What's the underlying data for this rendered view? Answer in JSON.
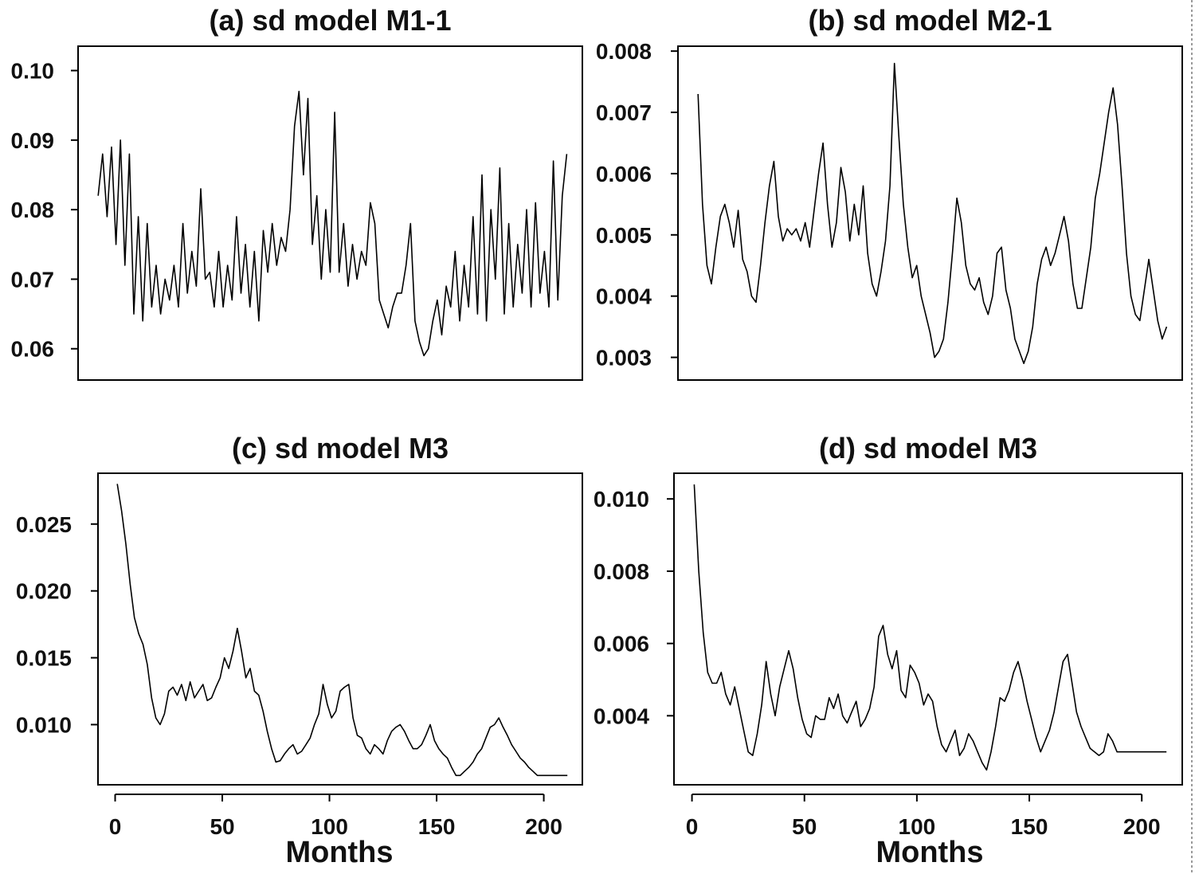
{
  "chart_data": [
    {
      "type": "line",
      "title": "(a) sd model M1-1",
      "xlabel": "",
      "ylabel": "",
      "xlim": [
        -8,
        218
      ],
      "ylim": [
        0.0555,
        0.1035
      ],
      "yticks": [
        "0.06",
        "0.07",
        "0.08",
        "0.09",
        "0.10"
      ],
      "xticks": [],
      "series": [
        {
          "name": "sd",
          "x": [
            1,
            3,
            5,
            7,
            9,
            11,
            13,
            15,
            17,
            19,
            21,
            23,
            25,
            27,
            29,
            31,
            33,
            35,
            37,
            39,
            41,
            43,
            45,
            47,
            49,
            51,
            53,
            55,
            57,
            59,
            61,
            63,
            65,
            67,
            69,
            71,
            73,
            75,
            77,
            79,
            81,
            83,
            85,
            87,
            89,
            91,
            93,
            95,
            97,
            99,
            101,
            103,
            105,
            107,
            109,
            111,
            113,
            115,
            117,
            119,
            121,
            123,
            125,
            127,
            129,
            131,
            133,
            135,
            137,
            139,
            141,
            143,
            145,
            147,
            149,
            151,
            153,
            155,
            157,
            159,
            161,
            163,
            165,
            167,
            169,
            171,
            173,
            175,
            177,
            179,
            181,
            183,
            185,
            187,
            189,
            191,
            193,
            195,
            197,
            199,
            201,
            203,
            205,
            207,
            209,
            211
          ],
          "values": [
            0.082,
            0.088,
            0.079,
            0.089,
            0.075,
            0.09,
            0.072,
            0.088,
            0.065,
            0.079,
            0.064,
            0.078,
            0.066,
            0.072,
            0.065,
            0.07,
            0.067,
            0.072,
            0.066,
            0.078,
            0.068,
            0.074,
            0.069,
            0.083,
            0.07,
            0.071,
            0.066,
            0.074,
            0.066,
            0.072,
            0.067,
            0.079,
            0.068,
            0.075,
            0.066,
            0.074,
            0.064,
            0.077,
            0.071,
            0.078,
            0.072,
            0.076,
            0.074,
            0.08,
            0.092,
            0.097,
            0.085,
            0.096,
            0.075,
            0.082,
            0.07,
            0.08,
            0.071,
            0.094,
            0.071,
            0.078,
            0.069,
            0.075,
            0.07,
            0.074,
            0.072,
            0.081,
            0.078,
            0.067,
            0.065,
            0.063,
            0.066,
            0.068,
            0.068,
            0.072,
            0.078,
            0.064,
            0.061,
            0.059,
            0.06,
            0.064,
            0.067,
            0.062,
            0.069,
            0.066,
            0.074,
            0.064,
            0.072,
            0.066,
            0.079,
            0.065,
            0.085,
            0.064,
            0.08,
            0.07,
            0.086,
            0.065,
            0.078,
            0.066,
            0.075,
            0.068,
            0.08,
            0.066,
            0.081,
            0.068,
            0.074,
            0.066,
            0.087,
            0.067,
            0.082,
            0.088
          ]
        }
      ]
    },
    {
      "type": "line",
      "title": "(b) sd model M2-1",
      "xlabel": "",
      "ylabel": "",
      "xlim": [
        -8,
        218
      ],
      "ylim": [
        0.00263,
        0.00808
      ],
      "yticks": [
        "0.003",
        "0.004",
        "0.005",
        "0.006",
        "0.007",
        "0.008"
      ],
      "xticks": [],
      "series": [
        {
          "name": "sd",
          "x": [
            1,
            3,
            5,
            7,
            9,
            11,
            13,
            15,
            17,
            19,
            21,
            23,
            25,
            27,
            29,
            31,
            33,
            35,
            37,
            39,
            41,
            43,
            45,
            47,
            49,
            51,
            53,
            55,
            57,
            59,
            61,
            63,
            65,
            67,
            69,
            71,
            73,
            75,
            77,
            79,
            81,
            83,
            85,
            87,
            89,
            91,
            93,
            95,
            97,
            99,
            101,
            103,
            105,
            107,
            109,
            111,
            113,
            115,
            117,
            119,
            121,
            123,
            125,
            127,
            129,
            131,
            133,
            135,
            137,
            139,
            141,
            143,
            145,
            147,
            149,
            151,
            153,
            155,
            157,
            159,
            161,
            163,
            165,
            167,
            169,
            171,
            173,
            175,
            177,
            179,
            181,
            183,
            185,
            187,
            189,
            191,
            193,
            195,
            197,
            199,
            201,
            203,
            205,
            207,
            209,
            211
          ],
          "values": [
            0.0073,
            0.0055,
            0.0045,
            0.0042,
            0.0048,
            0.0053,
            0.0055,
            0.0052,
            0.0048,
            0.0054,
            0.0046,
            0.0044,
            0.004,
            0.0039,
            0.0045,
            0.0052,
            0.0058,
            0.0062,
            0.0053,
            0.0049,
            0.0051,
            0.005,
            0.0051,
            0.0049,
            0.0052,
            0.0048,
            0.0054,
            0.006,
            0.0065,
            0.0055,
            0.0048,
            0.0052,
            0.0061,
            0.0057,
            0.0049,
            0.0055,
            0.005,
            0.0058,
            0.0047,
            0.0042,
            0.004,
            0.0044,
            0.0049,
            0.0058,
            0.0078,
            0.0066,
            0.0055,
            0.0048,
            0.0043,
            0.0045,
            0.004,
            0.0037,
            0.0034,
            0.003,
            0.0031,
            0.0033,
            0.0039,
            0.0047,
            0.0056,
            0.0052,
            0.0045,
            0.0042,
            0.0041,
            0.0043,
            0.0039,
            0.0037,
            0.004,
            0.0047,
            0.0048,
            0.0041,
            0.0038,
            0.0033,
            0.0031,
            0.0029,
            0.0031,
            0.0035,
            0.0042,
            0.0046,
            0.0048,
            0.0045,
            0.0047,
            0.005,
            0.0053,
            0.0049,
            0.0042,
            0.0038,
            0.0038,
            0.0043,
            0.0048,
            0.0056,
            0.006,
            0.0065,
            0.007,
            0.0074,
            0.0068,
            0.0058,
            0.0047,
            0.004,
            0.0037,
            0.0036,
            0.0041,
            0.0046,
            0.0041,
            0.0036,
            0.0033,
            0.0035
          ]
        }
      ]
    },
    {
      "type": "line",
      "title": "(c) sd model M3",
      "xlabel": "Months",
      "ylabel": "",
      "xlim": [
        -8,
        218
      ],
      "ylim": [
        0.0055,
        0.0288
      ],
      "yticks": [
        "0.010",
        "0.015",
        "0.020",
        "0.025"
      ],
      "xticks": [
        "0",
        "50",
        "100",
        "150",
        "200"
      ],
      "series": [
        {
          "name": "sd",
          "x": [
            1,
            3,
            5,
            7,
            9,
            11,
            13,
            15,
            17,
            19,
            21,
            23,
            25,
            27,
            29,
            31,
            33,
            35,
            37,
            39,
            41,
            43,
            45,
            47,
            49,
            51,
            53,
            55,
            57,
            59,
            61,
            63,
            65,
            67,
            69,
            71,
            73,
            75,
            77,
            79,
            81,
            83,
            85,
            87,
            89,
            91,
            93,
            95,
            97,
            99,
            101,
            103,
            105,
            107,
            109,
            111,
            113,
            115,
            117,
            119,
            121,
            123,
            125,
            127,
            129,
            131,
            133,
            135,
            137,
            139,
            141,
            143,
            145,
            147,
            149,
            151,
            153,
            155,
            157,
            159,
            161,
            163,
            165,
            167,
            169,
            171,
            173,
            175,
            177,
            179,
            181,
            183,
            185,
            187,
            189,
            191,
            193,
            195,
            197,
            199,
            201,
            203,
            205,
            207,
            209,
            211
          ],
          "values": [
            0.028,
            0.026,
            0.0235,
            0.0205,
            0.018,
            0.0168,
            0.016,
            0.0145,
            0.012,
            0.0105,
            0.01,
            0.0108,
            0.0125,
            0.0128,
            0.0122,
            0.013,
            0.0118,
            0.0132,
            0.012,
            0.0125,
            0.013,
            0.0118,
            0.012,
            0.0128,
            0.0135,
            0.015,
            0.0142,
            0.0155,
            0.0172,
            0.0155,
            0.0135,
            0.0142,
            0.0125,
            0.0122,
            0.011,
            0.0095,
            0.0082,
            0.0072,
            0.0073,
            0.0078,
            0.0082,
            0.0085,
            0.0078,
            0.008,
            0.0085,
            0.009,
            0.01,
            0.0108,
            0.013,
            0.0115,
            0.0105,
            0.011,
            0.0125,
            0.0128,
            0.013,
            0.0105,
            0.0092,
            0.009,
            0.0082,
            0.0078,
            0.0085,
            0.0082,
            0.0078,
            0.0088,
            0.0095,
            0.0098,
            0.01,
            0.0095,
            0.0088,
            0.0082,
            0.0082,
            0.0085,
            0.0092,
            0.01,
            0.0088,
            0.0082,
            0.0078,
            0.0075,
            0.0068,
            0.0062,
            0.0062,
            0.0065,
            0.0068,
            0.0072,
            0.0078,
            0.0082,
            0.009,
            0.0098,
            0.01,
            0.0105,
            0.0098,
            0.0092,
            0.0085,
            0.008,
            0.0075,
            0.0072,
            0.0068,
            0.0065,
            0.0062,
            0.0062,
            0.0062,
            0.0062,
            0.0062,
            0.0062,
            0.0062,
            0.0062
          ]
        }
      ]
    },
    {
      "type": "line",
      "title": "(d) sd model M3",
      "xlabel": "Months",
      "ylabel": "",
      "xlim": [
        -8,
        218
      ],
      "ylim": [
        0.00209,
        0.01071
      ],
      "yticks": [
        "0.004",
        "0.006",
        "0.008",
        "0.010"
      ],
      "xticks": [
        "0",
        "50",
        "100",
        "150",
        "200"
      ],
      "series": [
        {
          "name": "sd",
          "x": [
            1,
            3,
            5,
            7,
            9,
            11,
            13,
            15,
            17,
            19,
            21,
            23,
            25,
            27,
            29,
            31,
            33,
            35,
            37,
            39,
            41,
            43,
            45,
            47,
            49,
            51,
            53,
            55,
            57,
            59,
            61,
            63,
            65,
            67,
            69,
            71,
            73,
            75,
            77,
            79,
            81,
            83,
            85,
            87,
            89,
            91,
            93,
            95,
            97,
            99,
            101,
            103,
            105,
            107,
            109,
            111,
            113,
            115,
            117,
            119,
            121,
            123,
            125,
            127,
            129,
            131,
            133,
            135,
            137,
            139,
            141,
            143,
            145,
            147,
            149,
            151,
            153,
            155,
            157,
            159,
            161,
            163,
            165,
            167,
            169,
            171,
            173,
            175,
            177,
            179,
            181,
            183,
            185,
            187,
            189,
            191,
            193,
            195,
            197,
            199,
            201,
            203,
            205,
            207,
            209,
            211
          ],
          "values": [
            0.0104,
            0.008,
            0.0063,
            0.0052,
            0.0049,
            0.0049,
            0.0052,
            0.0046,
            0.0043,
            0.0048,
            0.0042,
            0.0036,
            0.003,
            0.0029,
            0.0035,
            0.0043,
            0.0055,
            0.0046,
            0.004,
            0.0048,
            0.0053,
            0.0058,
            0.0053,
            0.0045,
            0.0039,
            0.0035,
            0.0034,
            0.004,
            0.0039,
            0.0039,
            0.0045,
            0.0042,
            0.0046,
            0.004,
            0.0038,
            0.0041,
            0.0044,
            0.0037,
            0.0039,
            0.0042,
            0.0048,
            0.0062,
            0.0065,
            0.0057,
            0.0053,
            0.0058,
            0.0047,
            0.0045,
            0.0054,
            0.0052,
            0.0049,
            0.0043,
            0.0046,
            0.0044,
            0.0037,
            0.0032,
            0.003,
            0.0033,
            0.0036,
            0.0029,
            0.0031,
            0.0035,
            0.0033,
            0.003,
            0.0027,
            0.0025,
            0.003,
            0.0037,
            0.0045,
            0.0044,
            0.0047,
            0.0052,
            0.0055,
            0.005,
            0.0044,
            0.0039,
            0.0034,
            0.003,
            0.0033,
            0.0036,
            0.0041,
            0.0048,
            0.0055,
            0.0057,
            0.0049,
            0.0041,
            0.0037,
            0.0034,
            0.0031,
            0.003,
            0.0029,
            0.003,
            0.0035,
            0.0033,
            0.003,
            0.003,
            0.003,
            0.003,
            0.003,
            0.003,
            0.003,
            0.003,
            0.003,
            0.003,
            0.003,
            0.003
          ]
        }
      ]
    }
  ]
}
